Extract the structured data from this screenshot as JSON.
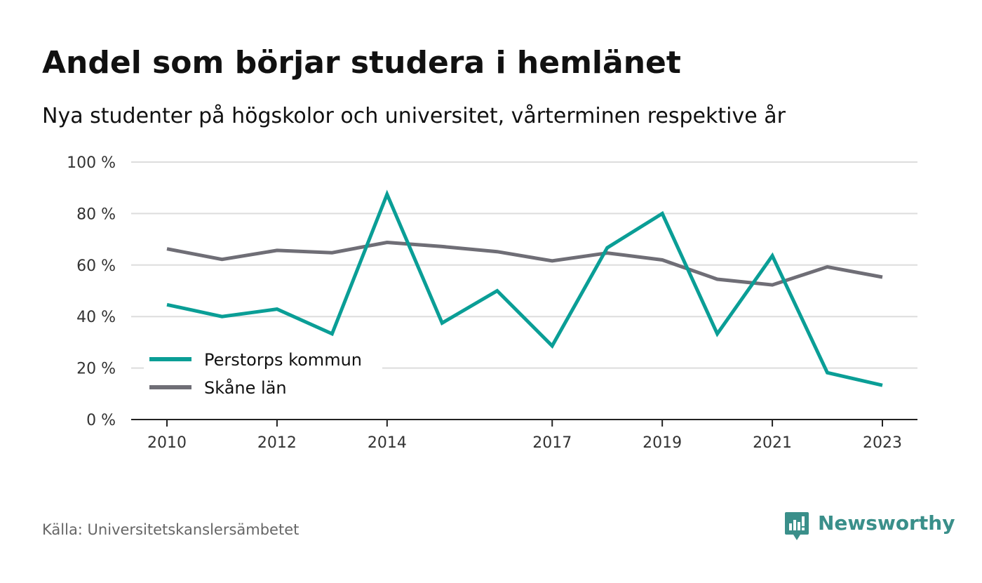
{
  "header": {
    "title": "Andel som börjar studera i hemlänet",
    "subtitle": "Nya studenter på högskolor och universitet, vårterminen respektive år"
  },
  "footer": {
    "source": "Källa: Universitetskanslersämbetet",
    "brand": "Newsworthy",
    "brand_color": "#3a8f8a"
  },
  "chart_data": {
    "type": "line",
    "title": "Andel som börjar studera i hemlänet",
    "subtitle": "Nya studenter på högskolor och universitet, vårterminen respektive år",
    "xlabel": "",
    "ylabel": "",
    "x": [
      2010,
      2011,
      2012,
      2013,
      2014,
      2015,
      2016,
      2017,
      2018,
      2019,
      2020,
      2021,
      2022,
      2023
    ],
    "x_tick_labels": [
      "2010",
      "2012",
      "2014",
      "2017",
      "2019",
      "2021",
      "2023"
    ],
    "y_tick_values": [
      0,
      20,
      40,
      60,
      80,
      100
    ],
    "y_tick_labels": [
      "0 %",
      "20 %",
      "40 %",
      "60 %",
      "80 %",
      "100 %"
    ],
    "ylim": [
      0,
      100
    ],
    "grid": true,
    "legend_position": "bottom-left",
    "series": [
      {
        "name": "Perstorps kommun",
        "color": "#0a9e96",
        "values": [
          44.6,
          40.0,
          42.9,
          33.3,
          87.5,
          37.5,
          50.0,
          28.6,
          66.7,
          80.0,
          33.3,
          63.6,
          18.2,
          13.3
        ]
      },
      {
        "name": "Skåne län",
        "color": "#6f6e76",
        "values": [
          66.3,
          62.2,
          65.7,
          64.8,
          68.8,
          67.2,
          65.2,
          61.6,
          64.7,
          62.0,
          54.5,
          52.3,
          59.3,
          55.3
        ]
      }
    ]
  }
}
